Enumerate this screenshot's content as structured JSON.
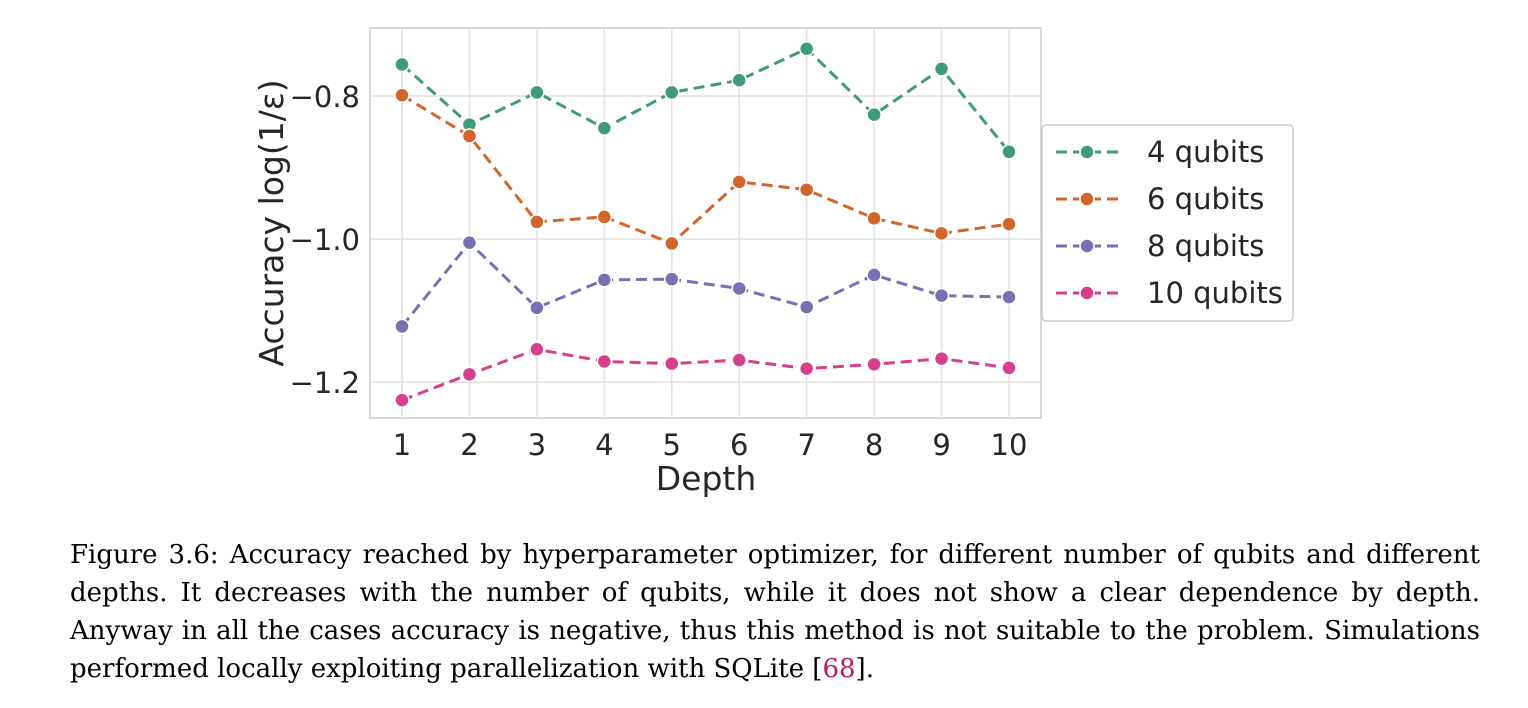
{
  "chart_data": {
    "type": "line",
    "xlabel": "Depth",
    "ylabel": "Accuracy log(1/ε)",
    "x": [
      1,
      2,
      3,
      4,
      5,
      6,
      7,
      8,
      9,
      10
    ],
    "ylim": [
      -1.25,
      -0.705
    ],
    "yticks": [
      -0.8,
      -1.0,
      -1.2
    ],
    "ytick_labels": [
      "−0.8",
      "−1.0",
      "−1.2"
    ],
    "grid": true,
    "legend_position": "right, outside plot",
    "series": [
      {
        "name": "4 qubits",
        "color": "#3f9a78",
        "values": [
          -0.756,
          -0.84,
          -0.795,
          -0.845,
          -0.795,
          -0.778,
          -0.734,
          -0.826,
          -0.762,
          -0.878
        ]
      },
      {
        "name": "6 qubits",
        "color": "#d2662a",
        "values": [
          -0.799,
          -0.856,
          -0.976,
          -0.969,
          -1.006,
          -0.92,
          -0.931,
          -0.971,
          -0.992,
          -0.979
        ]
      },
      {
        "name": "8 qubits",
        "color": "#7571b3",
        "values": [
          -1.122,
          -1.005,
          -1.096,
          -1.057,
          -1.056,
          -1.069,
          -1.095,
          -1.05,
          -1.079,
          -1.081
        ]
      },
      {
        "name": "10 qubits",
        "color": "#d63f8c",
        "values": [
          -1.225,
          -1.189,
          -1.154,
          -1.171,
          -1.174,
          -1.169,
          -1.181,
          -1.175,
          -1.167,
          -1.18
        ]
      }
    ]
  },
  "caption": {
    "text": "Figure 3.6: Accuracy reached by hyperparameter optimizer, for different number of qubits and different depths. It decreases with the number of qubits, while it does not show a clear dependence by depth. Anyway in all the cases accuracy is negative, thus this method is not suitable to the problem. Simulations performed locally exploiting parallelization with SQLite [",
    "ref": "68",
    "end": "]."
  }
}
